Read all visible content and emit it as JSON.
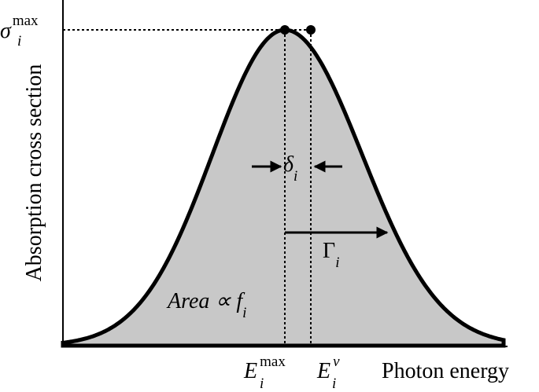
{
  "axes": {
    "y_label": "Absorption cross section",
    "x_label": "Photon energy"
  },
  "labels": {
    "sigma_max": {
      "base": "σ",
      "sub": "i",
      "sup": "max"
    },
    "E_max": {
      "base": "E",
      "sub": "i",
      "sup": "max"
    },
    "E_v": {
      "base": "E",
      "sub": "i",
      "sup": "v"
    },
    "delta": {
      "base": "δ",
      "sub": "i"
    },
    "gamma": {
      "base": "Γ",
      "sub": "i"
    },
    "area": {
      "base": "Area ∝ f",
      "sub": "i"
    }
  }
}
